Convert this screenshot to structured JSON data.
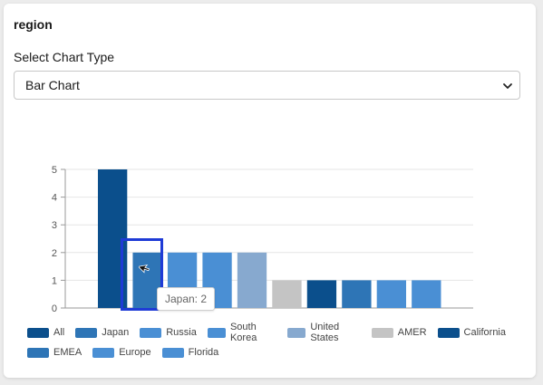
{
  "panel": {
    "title": "region",
    "select_label": "Select Chart Type",
    "select_value": "Bar Chart"
  },
  "tooltip": {
    "text": "Japan: 2"
  },
  "chart_data": {
    "type": "bar",
    "categories": [
      "All",
      "Japan",
      "Russia",
      "South Korea",
      "United States",
      "AMER",
      "California",
      "EMEA",
      "Europe",
      "Florida"
    ],
    "values": [
      5,
      2,
      2,
      2,
      2,
      1,
      1,
      1,
      1,
      1
    ],
    "colors": [
      "#0b4f8c",
      "#2e75b6",
      "#4a8fd4",
      "#4a8fd4",
      "#87a9cf",
      "#c4c4c4",
      "#0b4f8c",
      "#2e75b6",
      "#4a8fd4",
      "#4a8fd4"
    ],
    "y_ticks": [
      "0",
      "1",
      "2",
      "3",
      "4",
      "5"
    ],
    "ylim": [
      0,
      5
    ],
    "grid": true,
    "legend_position": "bottom",
    "highlighted": "Japan"
  }
}
